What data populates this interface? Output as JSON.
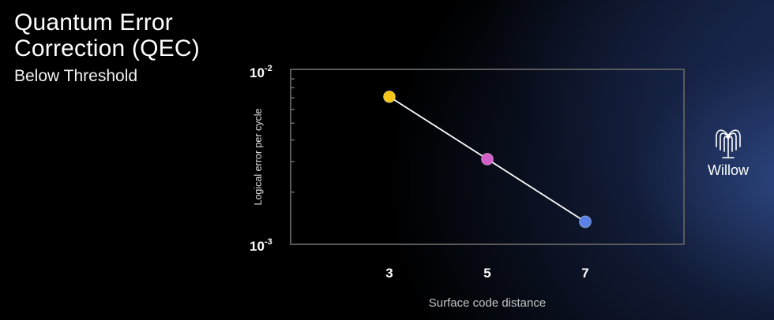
{
  "slide": {
    "title": "Quantum Error Correction (QEC)",
    "subtitle": "Below Threshold"
  },
  "brand": {
    "logo_icon": "willow-tree-icon",
    "label": "Willow"
  },
  "chart_data": {
    "type": "line",
    "title": "",
    "xlabel": "Surface code distance",
    "ylabel": "Logical error per cycle",
    "x": [
      3,
      5,
      7
    ],
    "xticks": [
      "3",
      "5",
      "7"
    ],
    "yscale": "log",
    "ylim": [
      0.001,
      0.01
    ],
    "yticks": [
      {
        "value": 0.01,
        "base": "10",
        "exp": "-2"
      },
      {
        "value": 0.001,
        "base": "10",
        "exp": "-3"
      }
    ],
    "series": [
      {
        "values": [
          0.0071,
          0.0031,
          0.00135
        ],
        "line_color": "#ffffff",
        "point_colors": [
          "#f5c518",
          "#d35fc8",
          "#5a82e6"
        ]
      }
    ],
    "grid": false,
    "legend": "none"
  }
}
